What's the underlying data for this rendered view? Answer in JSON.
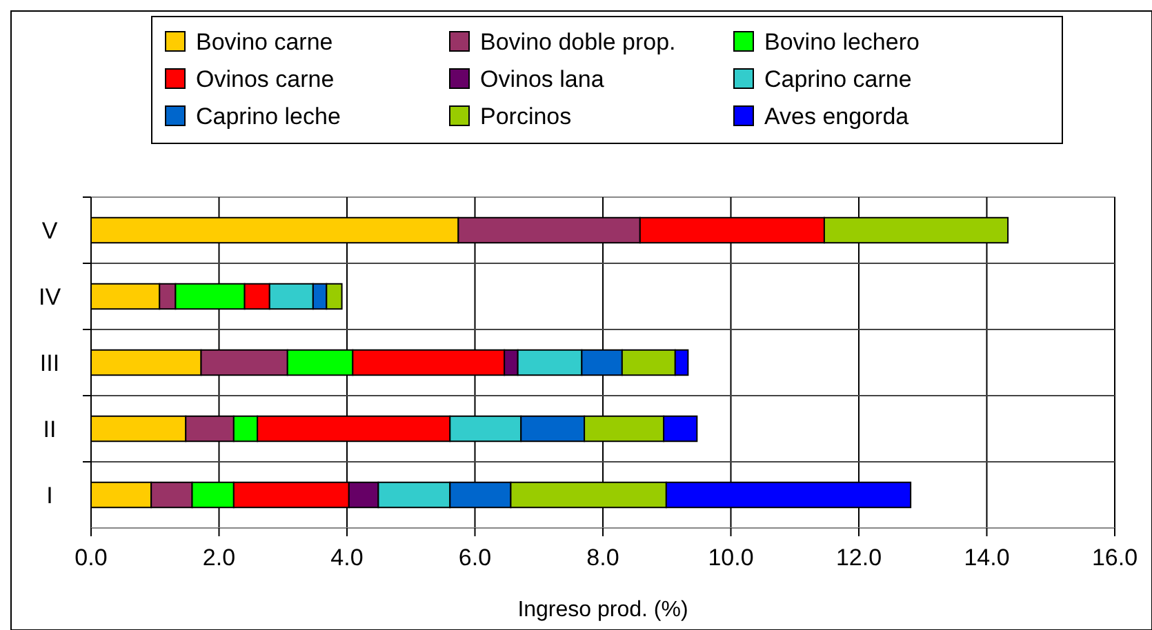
{
  "chart_data": {
    "type": "bar",
    "orientation": "horizontal",
    "stacked": true,
    "categories": [
      "V",
      "IV",
      "III",
      "II",
      "I"
    ],
    "xlabel": "Ingreso prod. (%)",
    "xlim": [
      0,
      16
    ],
    "xticks": [
      {
        "value": 0,
        "label": "0.0"
      },
      {
        "value": 2,
        "label": "2.0"
      },
      {
        "value": 4,
        "label": "4.0"
      },
      {
        "value": 6,
        "label": "6.0"
      },
      {
        "value": 8,
        "label": "8.0"
      },
      {
        "value": 10,
        "label": "10.0"
      },
      {
        "value": 12,
        "label": "12.0"
      },
      {
        "value": 14,
        "label": "14.0"
      },
      {
        "value": 16,
        "label": "16.0"
      }
    ],
    "grid": true,
    "legend": "top",
    "series": [
      {
        "name": "Bovino carne",
        "color": "#ffcc00",
        "values": [
          5.74,
          1.07,
          1.72,
          1.48,
          0.94
        ]
      },
      {
        "name": "Bovino doble prop.",
        "color": "#993366",
        "values": [
          2.84,
          0.25,
          1.35,
          0.75,
          0.64
        ]
      },
      {
        "name": "Bovino lechero",
        "color": "#00ff00",
        "values": [
          0,
          1.08,
          1.02,
          0.37,
          0.65
        ]
      },
      {
        "name": "Ovinos carne",
        "color": "#ff0000",
        "values": [
          2.88,
          0.39,
          2.37,
          3.01,
          1.8
        ]
      },
      {
        "name": "Ovinos lana",
        "color": "#660066",
        "values": [
          0,
          0,
          0.21,
          0,
          0.46
        ]
      },
      {
        "name": "Caprino carne",
        "color": "#33cccc",
        "values": [
          0,
          0.68,
          1.0,
          1.11,
          1.12
        ]
      },
      {
        "name": "Caprino leche",
        "color": "#0066cc",
        "values": [
          0,
          0.21,
          0.63,
          0.99,
          0.95
        ]
      },
      {
        "name": "Porcinos",
        "color": "#99cc00",
        "values": [
          2.87,
          0.24,
          0.83,
          1.24,
          2.43
        ]
      },
      {
        "name": "Aves engorda",
        "color": "#0000ff",
        "values": [
          0,
          0,
          0.2,
          0.52,
          3.82
        ]
      }
    ]
  }
}
